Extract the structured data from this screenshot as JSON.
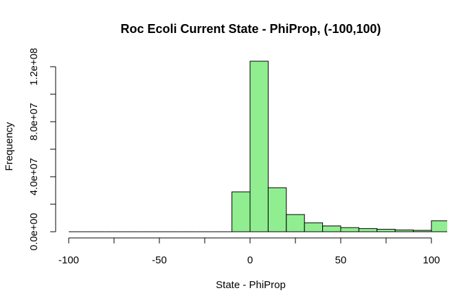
{
  "chart_data": {
    "type": "bar",
    "title": "Roc Ecoli Current State - PhiProp, (-100,100)",
    "xlabel": "State - PhiProp",
    "ylabel": "Frequency",
    "bar_color": "#90ee90",
    "bar_edge_color": "#000000",
    "xlim": [
      -100,
      108
    ],
    "ylim": [
      0,
      124000000
    ],
    "x_ticks": [
      -100,
      -50,
      0,
      50,
      100
    ],
    "x_tick_labels": [
      "-100",
      "-50",
      "0",
      "50",
      "100"
    ],
    "y_ticks": [
      0,
      40000000,
      80000000,
      120000000
    ],
    "y_tick_labels": [
      "0.0e+00",
      "4.0e+07",
      "8.0e+07",
      "1.2e+08"
    ],
    "bins": [
      {
        "start": -100,
        "end": -90,
        "count": 0
      },
      {
        "start": -90,
        "end": -80,
        "count": 0
      },
      {
        "start": -80,
        "end": -70,
        "count": 0
      },
      {
        "start": -70,
        "end": -60,
        "count": 0
      },
      {
        "start": -60,
        "end": -50,
        "count": 0
      },
      {
        "start": -50,
        "end": -40,
        "count": 0
      },
      {
        "start": -40,
        "end": -30,
        "count": 0
      },
      {
        "start": -30,
        "end": -20,
        "count": 0
      },
      {
        "start": -20,
        "end": -10,
        "count": 0
      },
      {
        "start": -10,
        "end": 0,
        "count": 29000000
      },
      {
        "start": 0,
        "end": 10,
        "count": 124000000
      },
      {
        "start": 10,
        "end": 20,
        "count": 32000000
      },
      {
        "start": 20,
        "end": 30,
        "count": 12500000
      },
      {
        "start": 30,
        "end": 40,
        "count": 6500000
      },
      {
        "start": 40,
        "end": 50,
        "count": 4200000
      },
      {
        "start": 50,
        "end": 60,
        "count": 3000000
      },
      {
        "start": 60,
        "end": 70,
        "count": 2300000
      },
      {
        "start": 70,
        "end": 80,
        "count": 1800000
      },
      {
        "start": 80,
        "end": 90,
        "count": 1300000
      },
      {
        "start": 90,
        "end": 100,
        "count": 1000000
      },
      {
        "start": 100,
        "end": 110,
        "count": 8000000
      }
    ]
  }
}
